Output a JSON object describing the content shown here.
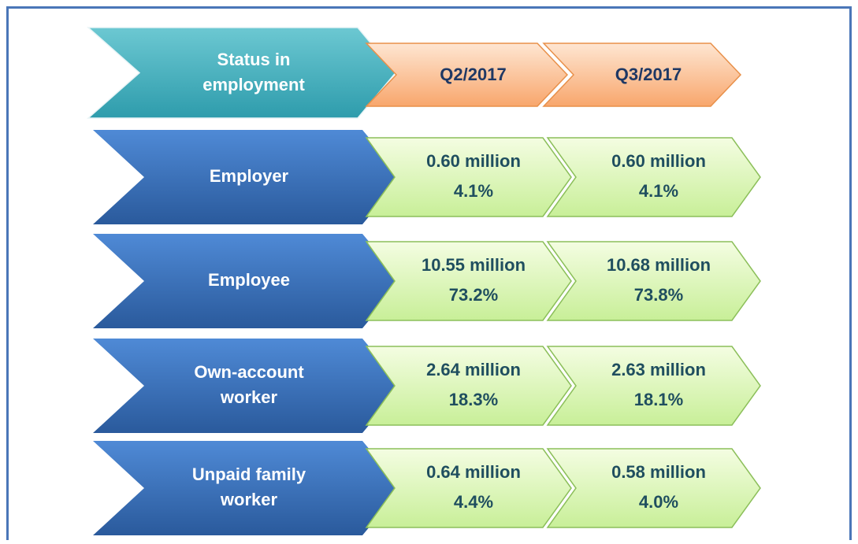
{
  "header": {
    "label": [
      "Status in",
      "employment"
    ],
    "periods": [
      "Q2/2017",
      "Q3/2017"
    ]
  },
  "rows": [
    {
      "label": [
        "Employer"
      ],
      "cells": [
        [
          "0.60 million",
          "4.1%"
        ],
        [
          "0.60 million",
          "4.1%"
        ]
      ]
    },
    {
      "label": [
        "Employee"
      ],
      "cells": [
        [
          "10.55 million",
          "73.2%"
        ],
        [
          "10.68 million",
          "73.8%"
        ]
      ]
    },
    {
      "label": [
        "Own-account",
        "worker"
      ],
      "cells": [
        [
          "2.64 million",
          "18.3%"
        ],
        [
          "2.63 million",
          "18.1%"
        ]
      ]
    },
    {
      "label": [
        "Unpaid family",
        "worker"
      ],
      "cells": [
        [
          "0.64 million",
          "4.4%"
        ],
        [
          "0.58 million",
          "4.0%"
        ]
      ]
    }
  ]
}
